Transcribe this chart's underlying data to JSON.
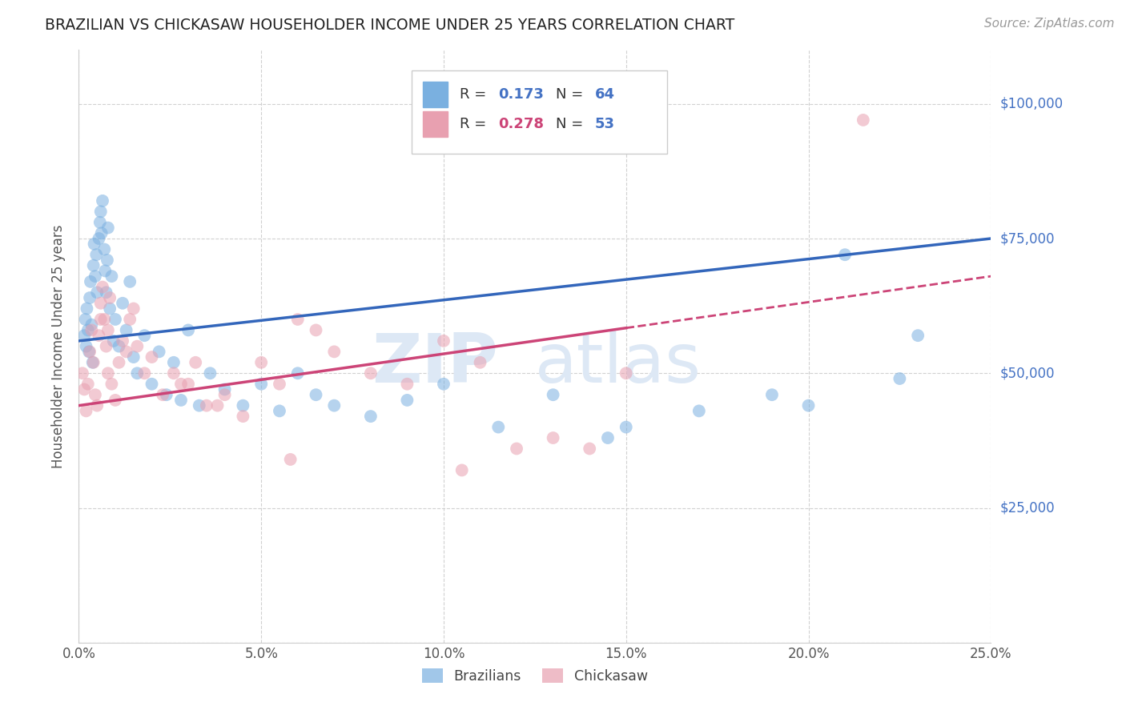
{
  "title": "BRAZILIAN VS CHICKASAW HOUSEHOLDER INCOME UNDER 25 YEARS CORRELATION CHART",
  "source": "Source: ZipAtlas.com",
  "ylabel": "Householder Income Under 25 years",
  "blue_color": "#7ab0e0",
  "pink_color": "#e8a0b0",
  "blue_line_color": "#3366bb",
  "pink_line_color": "#cc4477",
  "axis_label_color": "#4472c4",
  "text_color": "#555555",
  "watermark_color": "#dde8f5",
  "grid_color": "#cccccc",
  "braz_n": 64,
  "chick_n": 53,
  "braz_R": 0.173,
  "chick_R": 0.278,
  "xlim": [
    0,
    25
  ],
  "ylim": [
    0,
    110000
  ],
  "yticks": [
    0,
    25000,
    50000,
    75000,
    100000
  ],
  "ytick_labels": [
    "",
    "$25,000",
    "$50,000",
    "$75,000",
    "$100,000"
  ],
  "xticks": [
    0,
    5,
    10,
    15,
    20,
    25
  ],
  "xtick_labels": [
    "0.0%",
    "5.0%",
    "10.0%",
    "15.0%",
    "20.0%",
    "25.0%"
  ],
  "braz_x": [
    0.15,
    0.18,
    0.2,
    0.22,
    0.25,
    0.28,
    0.3,
    0.32,
    0.35,
    0.38,
    0.4,
    0.42,
    0.45,
    0.48,
    0.5,
    0.55,
    0.58,
    0.6,
    0.62,
    0.65,
    0.7,
    0.72,
    0.75,
    0.78,
    0.8,
    0.85,
    0.9,
    0.95,
    1.0,
    1.1,
    1.2,
    1.3,
    1.4,
    1.5,
    1.6,
    1.8,
    2.0,
    2.2,
    2.4,
    2.6,
    2.8,
    3.0,
    3.3,
    3.6,
    4.0,
    4.5,
    5.0,
    5.5,
    6.0,
    6.5,
    7.0,
    8.0,
    9.0,
    10.0,
    11.5,
    13.0,
    15.0,
    17.0,
    19.0,
    21.0,
    22.5,
    23.0,
    14.5,
    20.0
  ],
  "braz_y": [
    57000,
    60000,
    55000,
    62000,
    58000,
    54000,
    64000,
    67000,
    59000,
    52000,
    70000,
    74000,
    68000,
    72000,
    65000,
    75000,
    78000,
    80000,
    76000,
    82000,
    73000,
    69000,
    65000,
    71000,
    77000,
    62000,
    68000,
    56000,
    60000,
    55000,
    63000,
    58000,
    67000,
    53000,
    50000,
    57000,
    48000,
    54000,
    46000,
    52000,
    45000,
    58000,
    44000,
    50000,
    47000,
    44000,
    48000,
    43000,
    50000,
    46000,
    44000,
    42000,
    45000,
    48000,
    40000,
    46000,
    40000,
    43000,
    46000,
    72000,
    49000,
    57000,
    38000,
    44000
  ],
  "chick_x": [
    0.1,
    0.15,
    0.2,
    0.25,
    0.3,
    0.35,
    0.4,
    0.45,
    0.5,
    0.55,
    0.6,
    0.65,
    0.7,
    0.75,
    0.8,
    0.85,
    0.9,
    1.0,
    1.1,
    1.2,
    1.4,
    1.6,
    1.8,
    2.0,
    2.3,
    2.6,
    3.0,
    3.5,
    4.0,
    4.5,
    5.0,
    5.5,
    6.5,
    7.0,
    8.0,
    9.0,
    10.0,
    11.0,
    12.0,
    13.0,
    14.0,
    15.0,
    3.2,
    6.0,
    2.8,
    1.3,
    0.6,
    0.8,
    1.5,
    3.8,
    5.8,
    10.5,
    21.5
  ],
  "chick_y": [
    50000,
    47000,
    43000,
    48000,
    54000,
    58000,
    52000,
    46000,
    44000,
    57000,
    63000,
    66000,
    60000,
    55000,
    50000,
    64000,
    48000,
    45000,
    52000,
    56000,
    60000,
    55000,
    50000,
    53000,
    46000,
    50000,
    48000,
    44000,
    46000,
    42000,
    52000,
    48000,
    58000,
    54000,
    50000,
    48000,
    56000,
    52000,
    36000,
    38000,
    36000,
    50000,
    52000,
    60000,
    48000,
    54000,
    60000,
    58000,
    62000,
    44000,
    34000,
    32000,
    97000
  ],
  "blue_line_x0": 0,
  "blue_line_y0": 56000,
  "blue_line_x1": 25,
  "blue_line_y1": 75000,
  "pink_line_x0": 0,
  "pink_line_y0": 44000,
  "pink_line_x1": 25,
  "pink_line_y1": 68000,
  "pink_solid_end": 15.0
}
